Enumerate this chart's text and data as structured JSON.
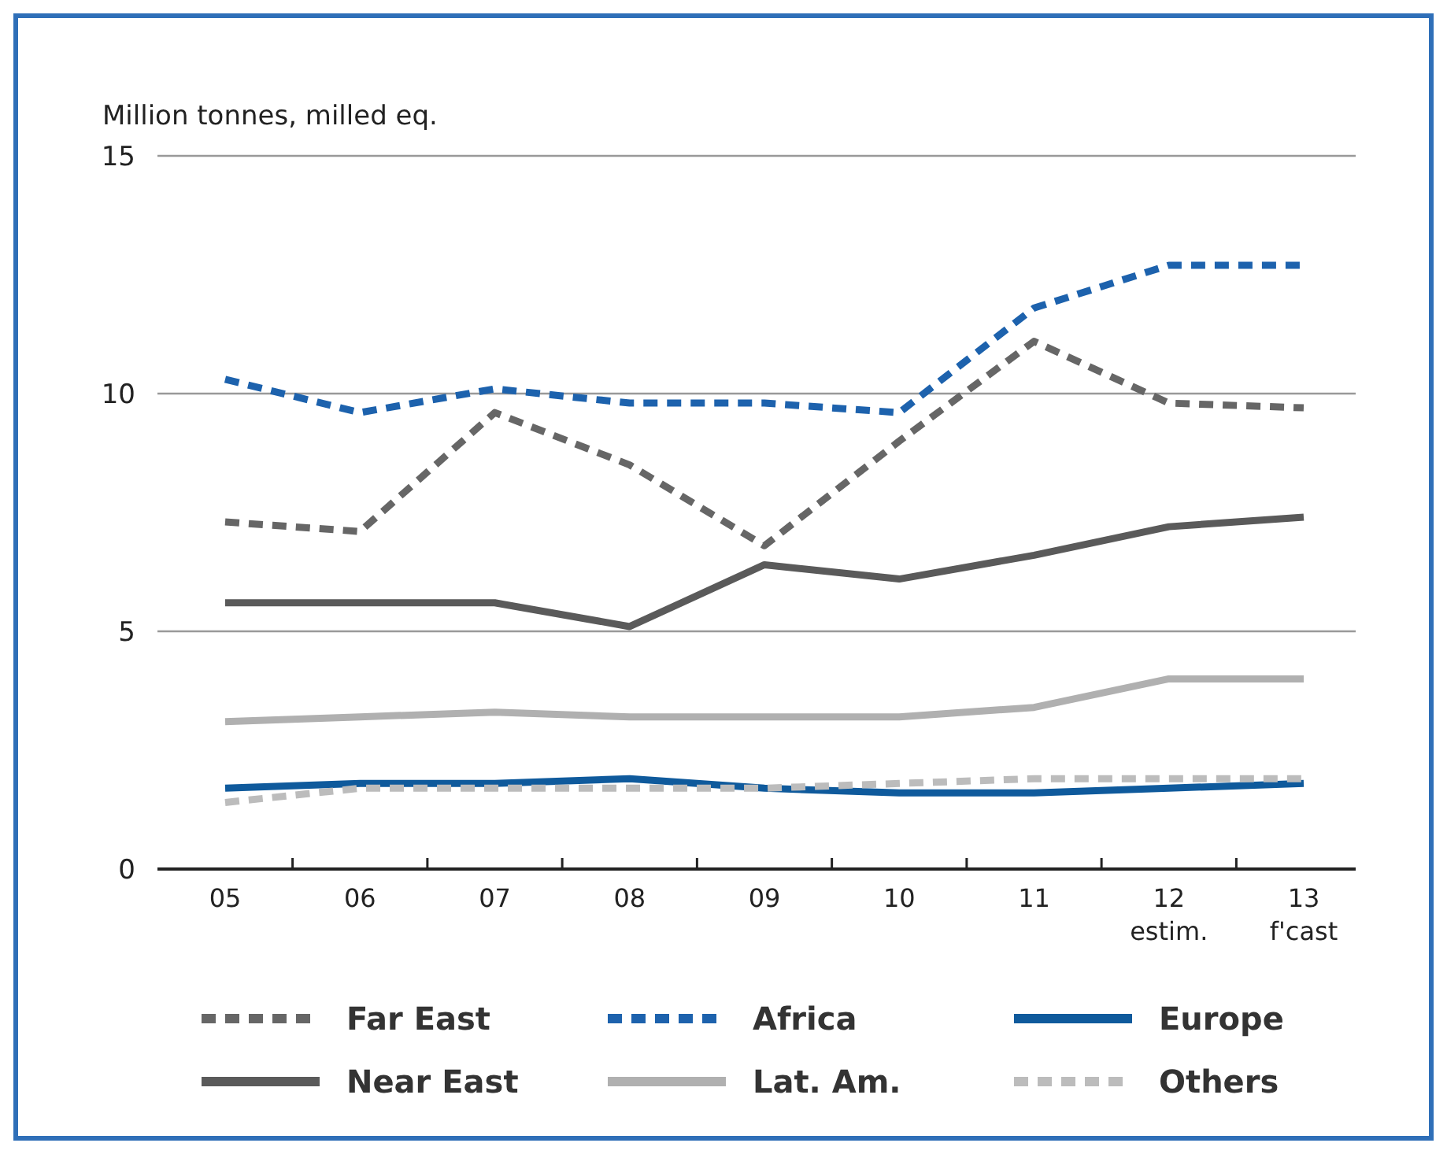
{
  "chart_data": {
    "type": "line",
    "ylabel": "Million tonnes, milled eq.",
    "categories": [
      "05",
      "06",
      "07",
      "08",
      "09",
      "10",
      "11",
      "12\nestim.",
      "13\nf'cast"
    ],
    "ylim": [
      0,
      15
    ],
    "yticks": [
      0,
      5,
      10,
      15
    ],
    "grid": "y",
    "legend": "bottom",
    "series": [
      {
        "name": "Far East",
        "color": "#666666",
        "line_style": "dashed",
        "values": [
          7.3,
          7.1,
          9.6,
          8.5,
          6.8,
          9.0,
          11.1,
          9.8,
          9.7
        ]
      },
      {
        "name": "Africa",
        "color": "#1d62ad",
        "line_style": "dashed",
        "values": [
          10.3,
          9.6,
          10.1,
          9.8,
          9.8,
          9.6,
          11.8,
          12.7,
          12.7
        ]
      },
      {
        "name": "Europe",
        "color": "#0f5a9c",
        "line_style": "solid",
        "values": [
          1.7,
          1.8,
          1.8,
          1.9,
          1.7,
          1.6,
          1.6,
          1.7,
          1.8
        ]
      },
      {
        "name": "Near East",
        "color": "#5a5a5a",
        "line_style": "solid",
        "values": [
          5.6,
          5.6,
          5.6,
          5.1,
          6.4,
          6.1,
          6.6,
          7.2,
          7.4
        ]
      },
      {
        "name": "Lat. Am.",
        "color": "#b0b0b0",
        "line_style": "solid",
        "values": [
          3.1,
          3.2,
          3.3,
          3.2,
          3.2,
          3.2,
          3.4,
          4.0,
          4.0
        ]
      },
      {
        "name": "Others",
        "color": "#bcbcbc",
        "line_style": "dashed",
        "values": [
          1.4,
          1.7,
          1.7,
          1.7,
          1.7,
          1.8,
          1.9,
          1.9,
          1.9
        ]
      }
    ]
  }
}
